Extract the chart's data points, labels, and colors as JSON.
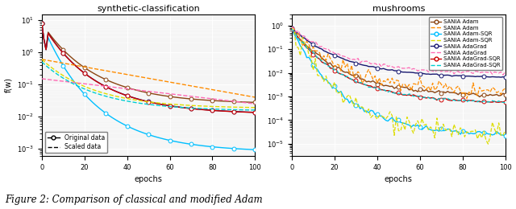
{
  "title_left": "synthetic-classification",
  "title_right": "mushrooms",
  "xlabel": "epochs",
  "ylabel": "f(w)",
  "left_ylim": [
    0.0006,
    15
  ],
  "right_ylim": [
    3e-06,
    3
  ],
  "colors": {
    "adam_orig": "#8B4513",
    "adam_scaled": "#FF8C00",
    "adamsqr_orig": "#00BFFF",
    "adamsqr_scaled": "#DDDD00",
    "adagrad_orig": "#191970",
    "adagrad_scaled": "#FF69B4",
    "adagradsqr_orig": "#CC0000",
    "adagradsqr_scaled": "#00CED1"
  },
  "legend_labels": [
    "SANIA Adam",
    "SANIA Adam",
    "SANIA Adam-SQR",
    "SANIA Adam-SQR",
    "SANIA AdaGrad",
    "SANIA AdaGrad",
    "SANIA AdaGrad-SQR",
    "SANIA AdaGrad-SQR"
  ],
  "left_legend_loc": "lower left",
  "right_legend_loc": "upper right"
}
